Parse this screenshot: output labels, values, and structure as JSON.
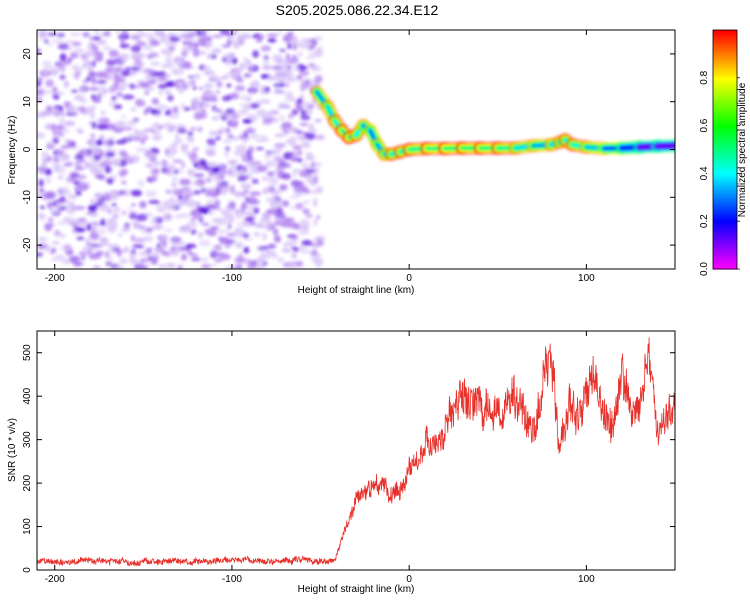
{
  "title": "S205.2025.086.22.34.E12",
  "chart_data": [
    {
      "type": "heatmap",
      "xlabel": "Height of straight line (km)",
      "ylabel": "Frequency (Hz)",
      "xlim": [
        -210,
        150
      ],
      "ylim": [
        -25,
        25
      ],
      "xticks": [
        -200,
        -100,
        0,
        100
      ],
      "yticks": [
        -20,
        -10,
        0,
        10,
        20
      ],
      "colorbar": {
        "label": "Normalized spectral amplitude",
        "range": [
          0,
          1
        ],
        "ticks": [
          "0.0",
          "0.2",
          "0.4",
          "0.6",
          "0.8"
        ]
      },
      "noise_region_x": [
        -210,
        -50
      ],
      "ridge": {
        "x": [
          -52,
          -46,
          -42,
          -38,
          -34,
          -30,
          -26,
          -22,
          -18,
          -14,
          -10,
          -5,
          0,
          10,
          20,
          30,
          40,
          50,
          60,
          70,
          80,
          85,
          88,
          92,
          100,
          110,
          120,
          130,
          140,
          150
        ],
        "y": [
          12,
          9,
          6,
          4,
          2.5,
          3,
          5,
          4,
          1,
          -1,
          -1,
          -0.5,
          0,
          0.2,
          0.2,
          0.3,
          0.3,
          0.3,
          0.3,
          0.8,
          1,
          1.5,
          2,
          1,
          0.5,
          0.2,
          0.3,
          0.5,
          0.7,
          0.8
        ],
        "amplitude": [
          0.75,
          0.8,
          0.85,
          0.9,
          0.95,
          0.9,
          0.8,
          0.7,
          0.75,
          0.8,
          0.85,
          0.9,
          0.9,
          0.95,
          0.95,
          0.95,
          0.95,
          0.95,
          0.9,
          0.75,
          0.8,
          0.85,
          0.85,
          0.9,
          0.85,
          0.75,
          0.6,
          0.45,
          0.4,
          0.45
        ]
      }
    },
    {
      "type": "line",
      "xlabel": "Height of straight line (km)",
      "ylabel": "SNR (10 * v/v)",
      "xlim": [
        -210,
        150
      ],
      "ylim": [
        0,
        550
      ],
      "xticks": [
        -200,
        -100,
        0,
        100
      ],
      "yticks": [
        0,
        100,
        200,
        300,
        400,
        500
      ],
      "color": "#e8302a",
      "envelope": {
        "x": [
          -210,
          -130,
          -60,
          -42,
          -38,
          -30,
          -25,
          -20,
          -15,
          -10,
          -5,
          0,
          5,
          10,
          15,
          20,
          25,
          30,
          35,
          40,
          45,
          50,
          55,
          60,
          65,
          70,
          75,
          80,
          85,
          90,
          95,
          100,
          105,
          110,
          115,
          120,
          125,
          130,
          135,
          140,
          145,
          150
        ],
        "y": [
          20,
          20,
          22,
          20,
          70,
          160,
          180,
          190,
          200,
          170,
          190,
          240,
          270,
          300,
          290,
          320,
          350,
          420,
          370,
          380,
          360,
          360,
          390,
          400,
          350,
          330,
          430,
          480,
          300,
          420,
          360,
          400,
          440,
          380,
          330,
          460,
          350,
          360,
          480,
          320,
          330,
          360
        ]
      }
    }
  ]
}
